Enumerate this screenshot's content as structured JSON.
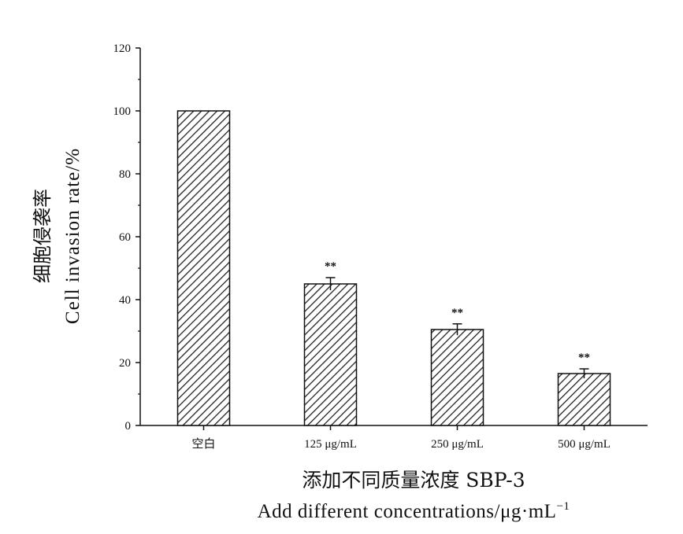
{
  "chart_data": {
    "type": "bar",
    "categories": [
      "空白",
      "125 μg/mL",
      "250 μg/mL",
      "500 μg/mL"
    ],
    "values": [
      100,
      45,
      30.5,
      16.5
    ],
    "errors": [
      0,
      2,
      1.8,
      1.5
    ],
    "significance": [
      "",
      "**",
      "**",
      "**"
    ],
    "ylim": [
      0,
      120
    ],
    "yticks": [
      0,
      20,
      40,
      60,
      80,
      100,
      120
    ],
    "ylabel": {
      "zh": "细胞侵袭率",
      "en": "Cell invasion rate/%"
    },
    "xlabel": {
      "zh": "添加不同质量浓度 SBP-3",
      "en": "Add different concentrations/μg·mL",
      "en_superscript": "−1"
    },
    "bar_fill": "diagonal-hatch",
    "bar_color": "#222222",
    "grid": false
  }
}
